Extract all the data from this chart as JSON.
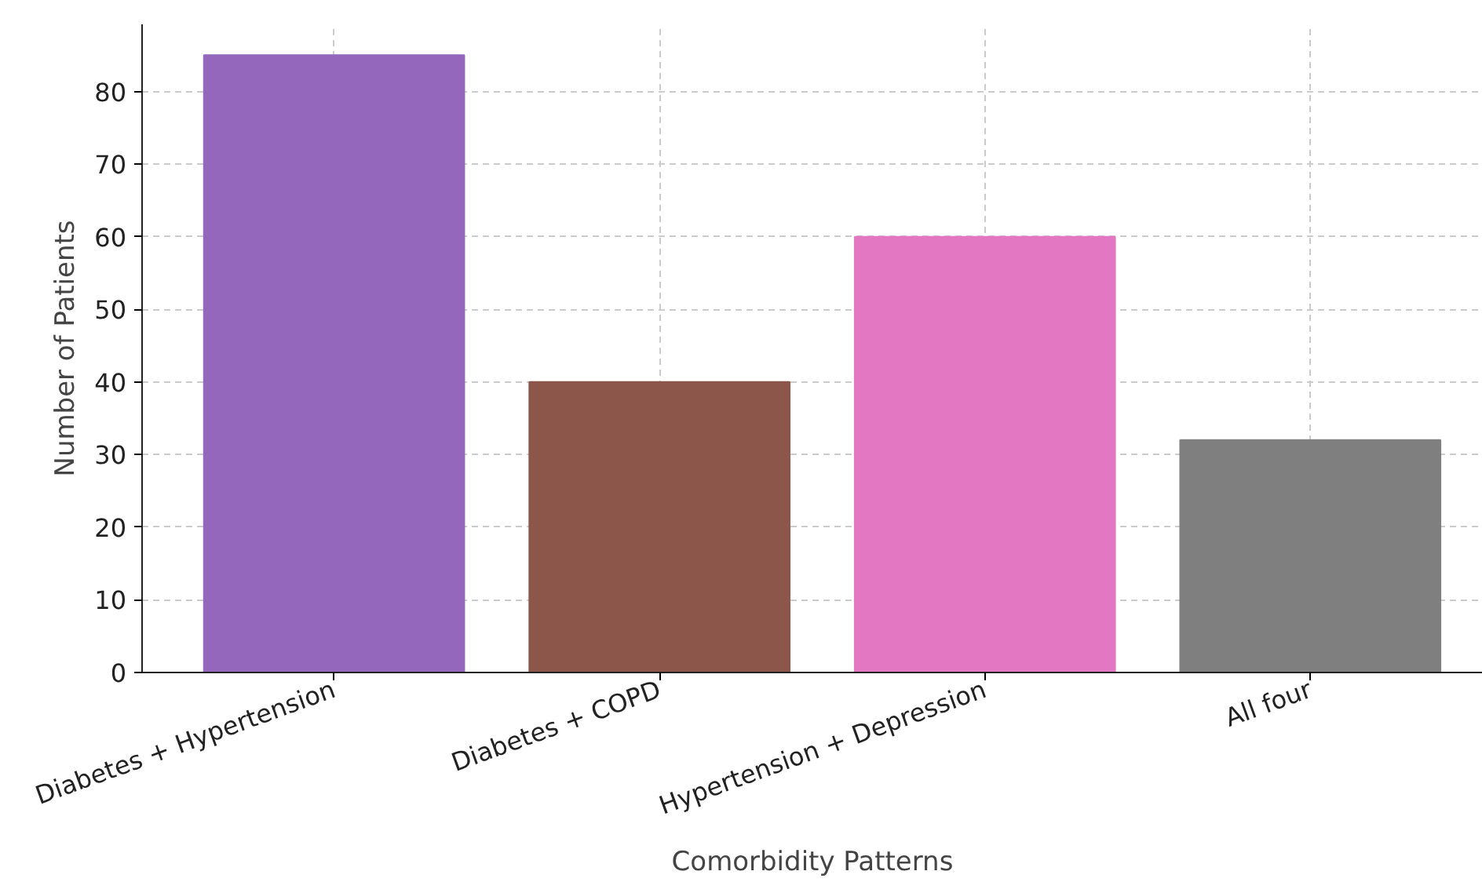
{
  "chart_data": {
    "type": "bar",
    "xlabel": "Comorbidity Patterns",
    "ylabel": "Number of Patients",
    "categories": [
      "Diabetes + Hypertension",
      "Diabetes + COPD",
      "Hypertension + Depression",
      "All four"
    ],
    "values": [
      85,
      40,
      60,
      32
    ],
    "colors": [
      "#9467bd",
      "#8c564b",
      "#e377c2",
      "#7f7f7f"
    ],
    "ylim": [
      0,
      89.25
    ],
    "yticks": [
      0,
      10,
      20,
      30,
      40,
      50,
      60,
      70,
      80
    ],
    "grid": true
  }
}
